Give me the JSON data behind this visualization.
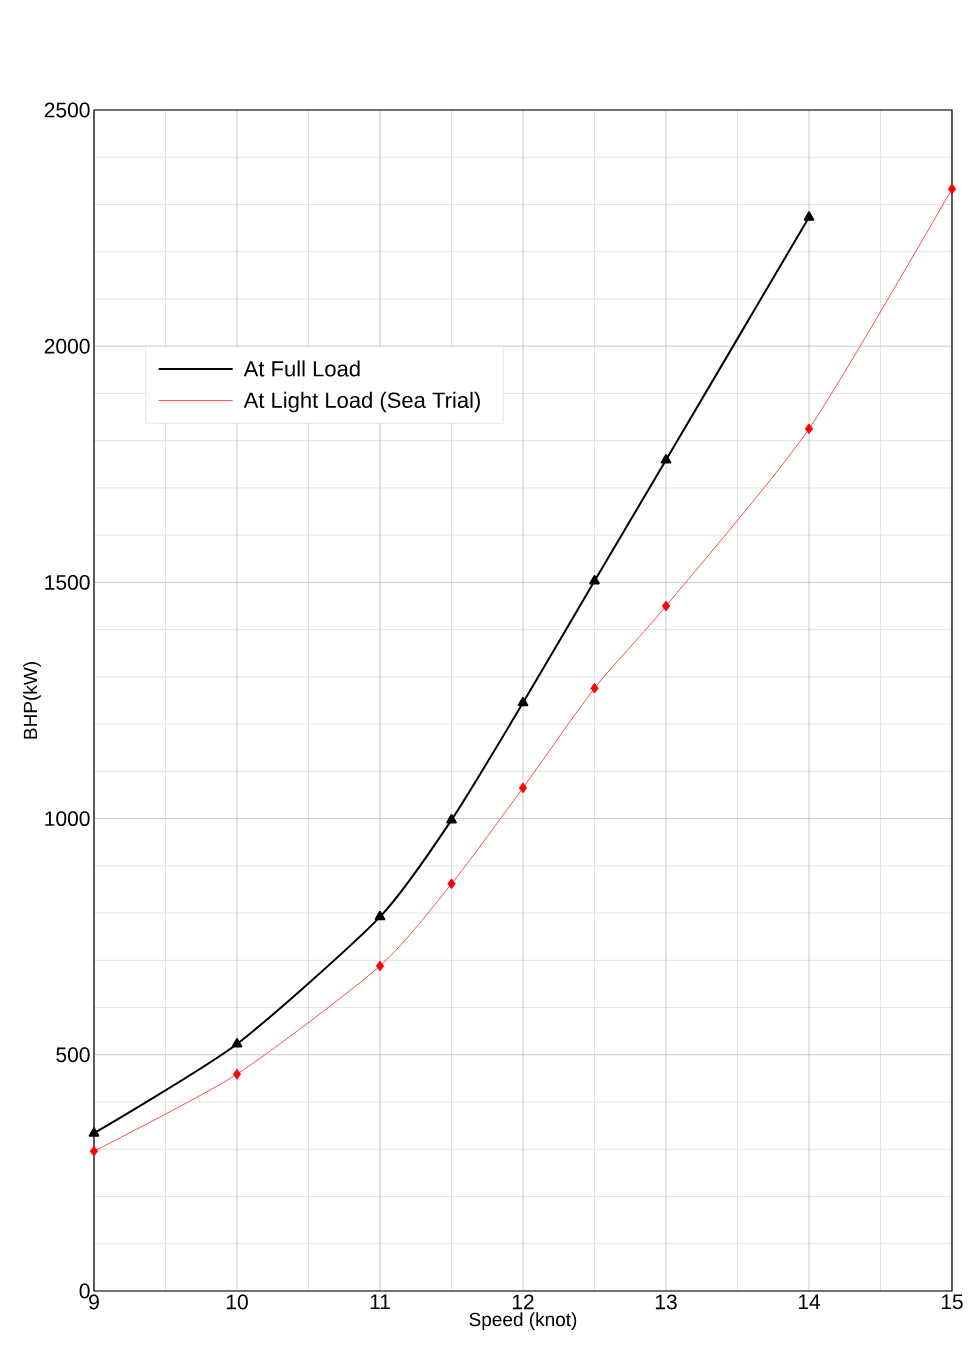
{
  "chart_data": {
    "type": "line",
    "xlabel": "Speed (knot)",
    "ylabel": "BHP(kW)",
    "xlim": [
      9,
      15
    ],
    "ylim": [
      0,
      2500
    ],
    "xticks": [
      9,
      10,
      11,
      12,
      13,
      14,
      15
    ],
    "yticks": [
      0,
      500,
      1000,
      1500,
      2000,
      2500
    ],
    "grid": true,
    "legend": "top left",
    "line_style": "solid",
    "series": [
      {
        "name": "At Full Load",
        "color": "#000000",
        "marker": "triangle",
        "x": [
          9,
          10,
          11,
          11.5,
          12,
          12.5,
          13,
          14
        ],
        "values": [
          334,
          523,
          792,
          997,
          1245,
          1503,
          1759,
          2273
        ]
      },
      {
        "name": "At Light Load (Sea Trial)",
        "color": "#ff0000",
        "marker": "diamond",
        "x": [
          9,
          10,
          11,
          11.5,
          12,
          12.5,
          13,
          14,
          15
        ],
        "values": [
          296,
          459,
          688,
          862,
          1065,
          1276,
          1450,
          1825,
          2333
        ]
      }
    ]
  }
}
